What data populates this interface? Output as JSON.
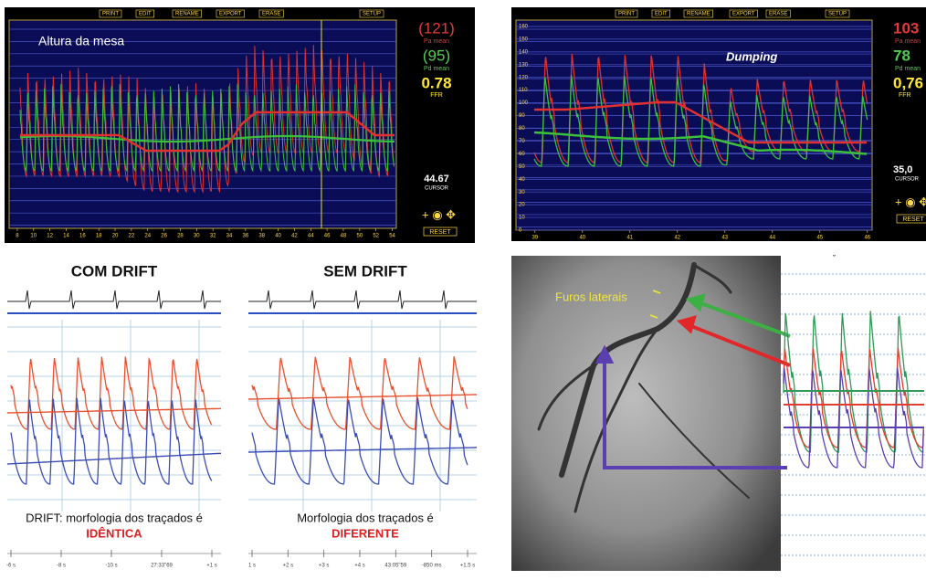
{
  "monitors": [
    {
      "menu": [
        "PRINT",
        "EDIT",
        "RENAME",
        "EXPORT",
        "ERASE",
        "SETUP"
      ],
      "label": "Altura da mesa",
      "pa_mean": "(121)",
      "pa_label": "Pa mean",
      "pd_mean": "(95)",
      "pd_label": "Pd mean",
      "ffr": "0.78",
      "ffr_label": "FFR",
      "cursor": "44.67",
      "cursor_label": "CURSOR",
      "reset": "RESET",
      "xlim": [
        7,
        54.5
      ],
      "xticks": [
        8,
        10,
        12,
        14,
        16,
        18,
        20,
        22,
        24,
        26,
        28,
        30,
        32,
        34,
        36,
        38,
        40,
        42,
        44,
        46,
        48,
        50,
        52,
        54
      ]
    },
    {
      "menu": [
        "PRINT",
        "EDIT",
        "RENAME",
        "EXPORT",
        "ERASE",
        "SETUP"
      ],
      "label": "Dumping",
      "pa_mean": "103",
      "pa_label": "Pa mean",
      "pd_mean": "78",
      "pd_label": "Pd mean",
      "ffr": "0,76",
      "ffr_label": "FFR",
      "cursor": "35,0",
      "cursor_label": "CURSOR",
      "reset": "RESET",
      "xlim": [
        38.6,
        46.1
      ],
      "xticks": [
        39,
        40,
        41,
        42,
        43,
        44,
        45,
        46
      ],
      "ylim": [
        0,
        165
      ],
      "yticks": [
        0,
        10,
        20,
        30,
        40,
        50,
        60,
        70,
        80,
        90,
        100,
        110,
        120,
        130,
        140,
        150,
        160
      ]
    }
  ],
  "drift": {
    "left": {
      "title": "COM DRIFT",
      "caption": "DRIFT: morfologia dos traçados é",
      "highlight": "IDÊNTICA",
      "axis": [
        "-6 s",
        "-8 s",
        "-10 s",
        "27:33\"69",
        "+1 s"
      ]
    },
    "right": {
      "title": "SEM DRIFT",
      "caption": "Morfologia dos traçados é",
      "highlight": "DIFERENTE",
      "axis": [
        "1 s",
        "+2 s",
        "+3 s",
        "+4 s",
        "43:05\"59",
        "-850 ms",
        "+1.5 s"
      ]
    }
  },
  "angio": {
    "label": "Furos laterais"
  }
}
